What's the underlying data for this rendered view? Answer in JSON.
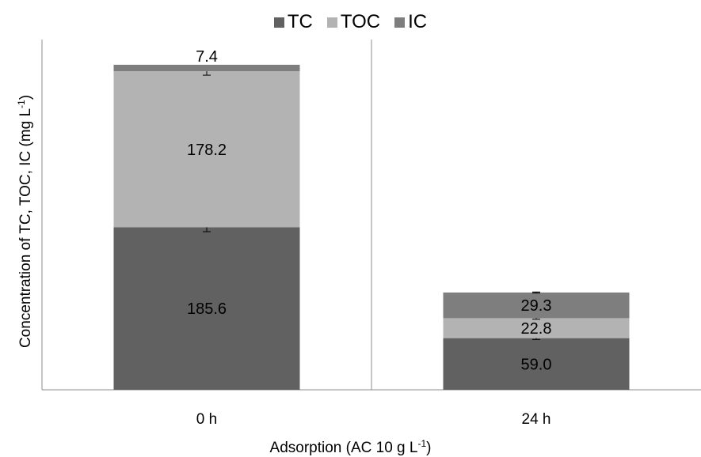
{
  "chart_data": {
    "type": "bar",
    "stacked": true,
    "categories": [
      "0 h",
      "24 h"
    ],
    "series": [
      {
        "name": "TC",
        "values": [
          185.6,
          59.0
        ],
        "color": "#616161",
        "errors": [
          5.0,
          1.5
        ]
      },
      {
        "name": "TOC",
        "values": [
          178.2,
          22.8
        ],
        "color": "#b3b3b3",
        "errors": [
          4.5,
          1.2
        ]
      },
      {
        "name": "IC",
        "values": [
          7.4,
          29.3
        ],
        "color": "#7e7e7e",
        "errors": [
          0.0,
          0.6
        ]
      }
    ],
    "data_labels": [
      [
        "185.6",
        "59.0"
      ],
      [
        "178.2",
        "22.8"
      ],
      [
        "7.4",
        "29.3"
      ]
    ],
    "xlabel": {
      "prefix": "Adsorption (AC 10 g L",
      "sup": "-1",
      "suffix": ")"
    },
    "ylabel": {
      "prefix": "Concentration of TC, TOC, IC (mg L",
      "sup": "-1",
      "suffix": ")"
    },
    "ylim": [
      0,
      400
    ],
    "grid": false,
    "legend_position": "top"
  }
}
